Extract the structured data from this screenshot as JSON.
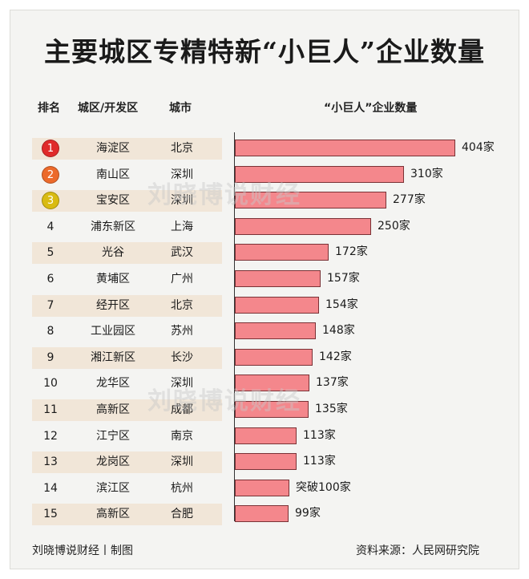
{
  "title": "主要城区专精特新“小巨人”企业数量",
  "headers": {
    "rank": "排名",
    "district": "城区/开发区",
    "city": "城市",
    "bar": "“小巨人”企业数量"
  },
  "watermark": "刘晓博说财经",
  "footer": {
    "left": "刘晓博说财经丨制图",
    "right": "资料来源：人民网研究院"
  },
  "medal_colors": [
    "#e02a2a",
    "#ec6a2b",
    "#d9bb12"
  ],
  "chart_data": {
    "type": "bar",
    "orientation": "horizontal",
    "title": "主要城区专精特新“小巨人”企业数量",
    "xlim": [
      0,
      404
    ],
    "rows": [
      {
        "rank": "1",
        "district": "海淀区",
        "city": "北京",
        "value": 404,
        "label": "404家"
      },
      {
        "rank": "2",
        "district": "南山区",
        "city": "深圳",
        "value": 310,
        "label": "310家"
      },
      {
        "rank": "3",
        "district": "宝安区",
        "city": "深圳",
        "value": 277,
        "label": "277家"
      },
      {
        "rank": "4",
        "district": "浦东新区",
        "city": "上海",
        "value": 250,
        "label": "250家"
      },
      {
        "rank": "5",
        "district": "光谷",
        "city": "武汉",
        "value": 172,
        "label": "172家"
      },
      {
        "rank": "6",
        "district": "黄埔区",
        "city": "广州",
        "value": 157,
        "label": "157家"
      },
      {
        "rank": "7",
        "district": "经开区",
        "city": "北京",
        "value": 154,
        "label": "154家"
      },
      {
        "rank": "8",
        "district": "工业园区",
        "city": "苏州",
        "value": 148,
        "label": "148家"
      },
      {
        "rank": "9",
        "district": "湘江新区",
        "city": "长沙",
        "value": 142,
        "label": "142家"
      },
      {
        "rank": "10",
        "district": "龙华区",
        "city": "深圳",
        "value": 137,
        "label": "137家"
      },
      {
        "rank": "11",
        "district": "高新区",
        "city": "成都",
        "value": 135,
        "label": "135家"
      },
      {
        "rank": "12",
        "district": "江宁区",
        "city": "南京",
        "value": 113,
        "label": "113家"
      },
      {
        "rank": "13",
        "district": "龙岗区",
        "city": "深圳",
        "value": 113,
        "label": "113家"
      },
      {
        "rank": "14",
        "district": "滨江区",
        "city": "杭州",
        "value": 100,
        "label": "突破100家"
      },
      {
        "rank": "15",
        "district": "高新区",
        "city": "合肥",
        "value": 99,
        "label": "99家"
      }
    ]
  }
}
